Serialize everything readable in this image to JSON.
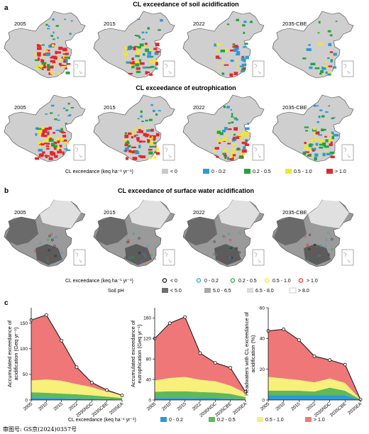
{
  "panel_letters": [
    "a",
    "b",
    "c"
  ],
  "row_titles": {
    "soil_acidification": "CL exceedance of soil acidification",
    "eutrophication": "CL exceedance of eutrophication",
    "surface_water": "CL exceedance of surface water acidification"
  },
  "map_years_a": [
    "2005",
    "2015",
    "2022",
    "2035-CBE"
  ],
  "map_years_b": [
    "2005",
    "2015",
    "2022",
    "2035-CBE"
  ],
  "legend_a": {
    "label": "CL exceedance  (keq ha⁻¹ yr⁻¹)",
    "items": [
      {
        "label": "< 0",
        "color": "#c8c8c8"
      },
      {
        "label": "0 - 0.2",
        "color": "#2b9ad8"
      },
      {
        "label": "0.2 - 0.5",
        "color": "#21a43a"
      },
      {
        "label": "0.5 - 1.0",
        "color": "#f4e52a"
      },
      {
        "label": "> 1.0",
        "color": "#e8252a"
      }
    ]
  },
  "legend_b": {
    "label": "CL exceedance  (keq ha⁻¹ yr⁻¹)",
    "items": [
      {
        "label": "< 0",
        "color": "#111111"
      },
      {
        "label": "0 - 0.2",
        "color": "#2b9ad8"
      },
      {
        "label": "0.2 - 0.5",
        "color": "#21a43a"
      },
      {
        "label": "0.5 - 1.0",
        "color": "#f4e52a"
      },
      {
        "label": "> 1.0",
        "color": "#e8252a"
      }
    ],
    "ph_label": "Soil pH",
    "ph_items": [
      {
        "label": "< 5.0",
        "color": "#6e6e6e"
      },
      {
        "label": "5.0 - 6.5",
        "color": "#a9a9a9"
      },
      {
        "label": "6.5 - 8.0",
        "color": "#dcdcdc"
      },
      {
        "label": "> 8.0",
        "color": "#ffffff"
      }
    ]
  },
  "legend_c": {
    "label": "CL exceedance  (keq ha⁻¹ yr⁻¹)",
    "items": [
      {
        "label": "0 - 0.2",
        "color": "#2b9ad8"
      },
      {
        "label": "0.2 - 0.5",
        "color": "#5fb95a"
      },
      {
        "label": "0.5 - 1.0",
        "color": "#f7f07a"
      },
      {
        "label": "> 1.0",
        "color": "#ef7778"
      }
    ]
  },
  "footnote": "审图号: GS京(2024)0357号",
  "chart_data": [
    {
      "type": "area",
      "ylabel": "Accumulated exceedance of acidification (Geq yr⁻¹)",
      "ylim": [
        0,
        180
      ],
      "yticks": [
        0,
        50,
        100,
        150
      ],
      "categories": [
        "2005",
        "2010",
        "2015",
        "2022",
        "2035NDC",
        "2035CBE",
        "2035EA"
      ],
      "series": [
        {
          "name": "0 - 0.2",
          "values": [
            4,
            4,
            3.5,
            3,
            2,
            1.5,
            0.8
          ]
        },
        {
          "name": "0.2 - 0.5",
          "values": [
            11,
            10,
            9,
            8,
            7,
            5,
            3
          ]
        },
        {
          "name": "0.5 - 1.0",
          "values": [
            23,
            26,
            25,
            20,
            16,
            10,
            5
          ]
        },
        {
          "name": "> 1.0",
          "values": [
            118,
            126,
            79,
            33,
            9,
            3,
            0.2
          ]
        }
      ],
      "totals": [
        156,
        166,
        116,
        64,
        34,
        19.5,
        9
      ]
    },
    {
      "type": "area",
      "ylabel": "Accumulated exceedance of eutrophication (Geq yr⁻¹)",
      "ylim": [
        0,
        180
      ],
      "yticks": [
        0,
        40,
        80,
        120,
        160
      ],
      "categories": [
        "2005",
        "2010",
        "2015",
        "2022",
        "2035NDC",
        "2035CBE",
        "2035EA"
      ],
      "series": [
        {
          "name": "0 - 0.2",
          "values": [
            4,
            4,
            4,
            3.5,
            3.5,
            3,
            1.5
          ]
        },
        {
          "name": "0.2 - 0.5",
          "values": [
            12,
            13,
            13,
            12,
            11,
            9,
            4
          ]
        },
        {
          "name": "0.5 - 1.0",
          "values": [
            22,
            26,
            28,
            24,
            22,
            16,
            8
          ]
        },
        {
          "name": "> 1.0",
          "values": [
            82,
            107,
            117,
            52,
            36,
            35,
            2
          ]
        }
      ],
      "totals": [
        120,
        150,
        162,
        91.5,
        72.5,
        63,
        15.5
      ]
    },
    {
      "type": "area",
      "ylabel": "Headwaters with CL exceedance of acidification (%)",
      "ylim": [
        0,
        60
      ],
      "yticks": [
        0,
        20,
        40,
        60
      ],
      "categories": [
        "2005",
        "2010",
        "2015",
        "2022",
        "2035NDC",
        "2035CBE",
        "2035EA"
      ],
      "series": [
        {
          "name": "0 - 0.2",
          "values": [
            3,
            3,
            3,
            3,
            3,
            3,
            0.2
          ]
        },
        {
          "name": "0.2 - 0.5",
          "values": [
            3,
            3,
            3,
            2.5,
            5,
            3,
            0.1
          ]
        },
        {
          "name": "0.5 - 1.0",
          "values": [
            9,
            8,
            7,
            6,
            6,
            5,
            0
          ]
        },
        {
          "name": "> 1.0",
          "values": [
            30,
            32,
            26,
            17,
            12,
            12,
            0
          ]
        }
      ],
      "totals": [
        45,
        46,
        39,
        28.5,
        26,
        23,
        0.3
      ]
    }
  ]
}
